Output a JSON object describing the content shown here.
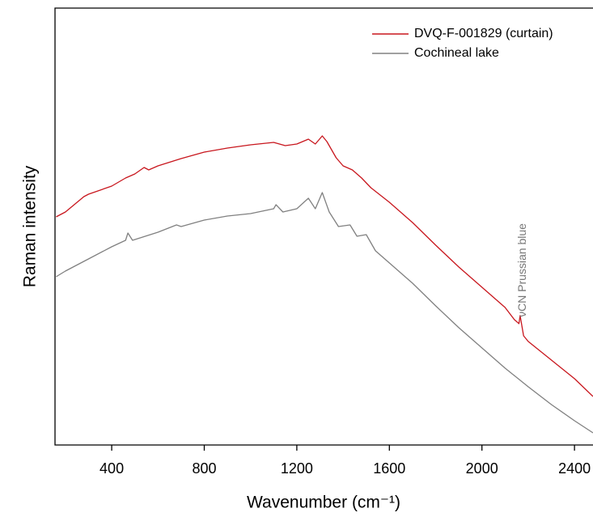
{
  "chart_data": {
    "type": "line",
    "x_label": "Wavenumber (cm⁻¹)",
    "y_label": "Raman intensity",
    "xlim": [
      155,
      2480
    ],
    "xticks": [
      400,
      800,
      1200,
      1600,
      2000,
      2400
    ],
    "ylim": [
      0,
      540
    ],
    "legend": "upper right",
    "annotations": [
      {
        "text": "νCN Prussian blue",
        "x": 2160
      }
    ],
    "series": [
      {
        "name": "DVQ-F-001829 (curtain)",
        "color": "#c8161d",
        "x": [
          160,
          200,
          280,
          300,
          400,
          460,
          500,
          540,
          560,
          600,
          700,
          800,
          900,
          1000,
          1100,
          1150,
          1200,
          1250,
          1280,
          1310,
          1330,
          1370,
          1400,
          1440,
          1480,
          1520,
          1600,
          1700,
          1800,
          1900,
          2000,
          2100,
          2140,
          2160,
          2165,
          2180,
          2200,
          2300,
          2400,
          2480
        ],
        "values": [
          282,
          288,
          307,
          310,
          320,
          330,
          335,
          343,
          340,
          345,
          354,
          362,
          367,
          371,
          374,
          370,
          372,
          378,
          372,
          382,
          375,
          355,
          345,
          340,
          330,
          318,
          300,
          275,
          247,
          220,
          195,
          170,
          155,
          150,
          160,
          135,
          128,
          105,
          82,
          60
        ]
      },
      {
        "name": "Cochineal lake",
        "color": "#808080",
        "x": [
          160,
          200,
          300,
          400,
          460,
          470,
          490,
          600,
          680,
          700,
          800,
          900,
          1000,
          1100,
          1110,
          1140,
          1200,
          1250,
          1280,
          1310,
          1340,
          1380,
          1430,
          1460,
          1500,
          1540,
          1600,
          1700,
          1800,
          1900,
          2000,
          2100,
          2200,
          2300,
          2400,
          2480
        ],
        "values": [
          208,
          215,
          230,
          245,
          253,
          262,
          253,
          263,
          272,
          270,
          278,
          283,
          286,
          292,
          297,
          288,
          292,
          305,
          292,
          312,
          288,
          270,
          272,
          258,
          260,
          240,
          225,
          200,
          172,
          145,
          120,
          95,
          72,
          50,
          30,
          15
        ]
      }
    ]
  }
}
